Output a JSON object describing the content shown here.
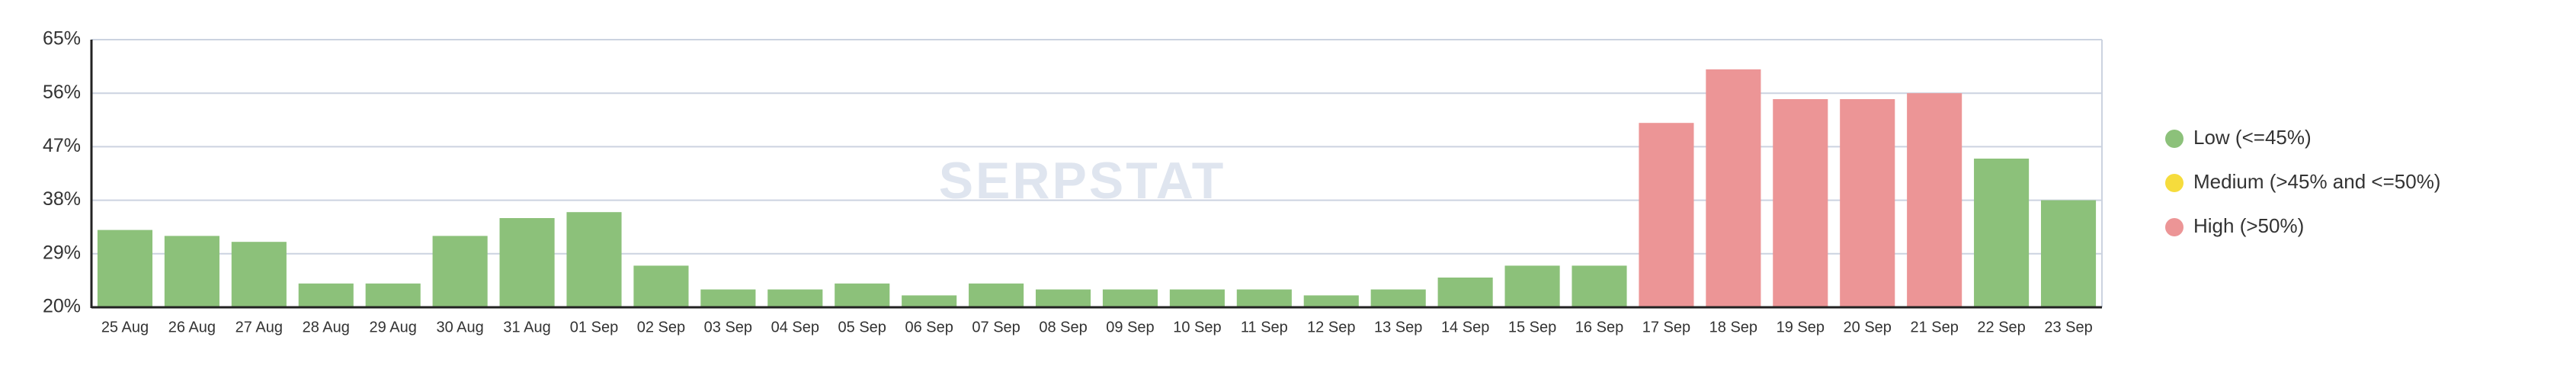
{
  "chart_data": {
    "type": "bar",
    "watermark": "SERPSTAT",
    "categories": [
      "25 Aug",
      "26 Aug",
      "27 Aug",
      "28 Aug",
      "29 Aug",
      "30 Aug",
      "31 Aug",
      "01 Sep",
      "02 Sep",
      "03 Sep",
      "04 Sep",
      "05 Sep",
      "06 Sep",
      "07 Sep",
      "08 Sep",
      "09 Sep",
      "10 Sep",
      "11 Sep",
      "12 Sep",
      "13 Sep",
      "14 Sep",
      "15 Sep",
      "16 Sep",
      "17 Sep",
      "18 Sep",
      "19 Sep",
      "20 Sep",
      "21 Sep",
      "22 Sep",
      "23 Sep"
    ],
    "values": [
      33,
      32,
      31,
      24,
      24,
      32,
      35,
      36,
      27,
      23,
      23,
      24,
      22,
      24,
      23,
      23,
      23,
      23,
      22,
      23,
      25,
      27,
      27,
      51,
      60,
      55,
      55,
      56,
      45,
      38
    ],
    "colors": [
      "#8cc17a",
      "#8cc17a",
      "#8cc17a",
      "#8cc17a",
      "#8cc17a",
      "#8cc17a",
      "#8cc17a",
      "#8cc17a",
      "#8cc17a",
      "#8cc17a",
      "#8cc17a",
      "#8cc17a",
      "#8cc17a",
      "#8cc17a",
      "#8cc17a",
      "#8cc17a",
      "#8cc17a",
      "#8cc17a",
      "#8cc17a",
      "#8cc17a",
      "#8cc17a",
      "#8cc17a",
      "#8cc17a",
      "#ec9596",
      "#ec9596",
      "#ec9596",
      "#ec9596",
      "#ec9596",
      "#8cc17a",
      "#8cc17a"
    ],
    "ylim": [
      20,
      65
    ],
    "yticks": [
      {
        "value": 20,
        "label": "20%"
      },
      {
        "value": 29,
        "label": "29%"
      },
      {
        "value": 38,
        "label": "38%"
      },
      {
        "value": 47,
        "label": "47%"
      },
      {
        "value": 56,
        "label": "56%"
      },
      {
        "value": 65,
        "label": "65%"
      }
    ],
    "grid": true,
    "legend": [
      {
        "name": "Low (<=45%)",
        "color": "#8cc17a"
      },
      {
        "name": "Medium (>45% and <=50%)",
        "color": "#f6dc3c"
      },
      {
        "name": "High (>50%)",
        "color": "#ec9596"
      }
    ]
  }
}
